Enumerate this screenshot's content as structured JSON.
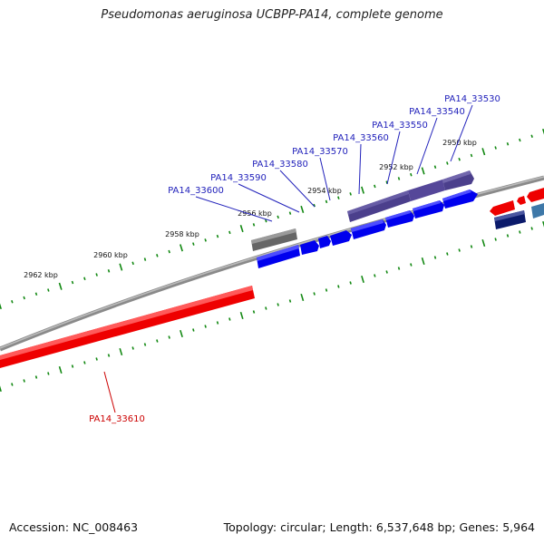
{
  "title": "Pseudomonas aeruginosa UCBPP-PA14, complete genome",
  "footer": {
    "accession": "Accession: NC_008463",
    "summary": "Topology: circular; Length: 6,537,648 bp; Genes: 5,964"
  },
  "colors": {
    "forward_gene": "#0000ee",
    "forward_label": "#2222bb",
    "reverse_gene": "#ee0000",
    "reverse_label": "#cc0000",
    "purple_gene": "#4b3f8c",
    "grey_gene": "#666666",
    "navy_gene": "#0b1a6b",
    "steelblue_gene": "#3e78a8",
    "backbone": "#888888",
    "tick": "#118811"
  },
  "scale_labels": [
    "2950 kbp",
    "2952 kbp",
    "2954 kbp",
    "2956 kbp",
    "2958 kbp",
    "2960 kbp",
    "2962 kbp"
  ],
  "gene_labels": [
    {
      "id": "PA14_33530",
      "strand": "forward"
    },
    {
      "id": "PA14_33540",
      "strand": "forward"
    },
    {
      "id": "PA14_33550",
      "strand": "forward"
    },
    {
      "id": "PA14_33560",
      "strand": "forward"
    },
    {
      "id": "PA14_33570",
      "strand": "forward"
    },
    {
      "id": "PA14_33580",
      "strand": "forward"
    },
    {
      "id": "PA14_33590",
      "strand": "forward"
    },
    {
      "id": "PA14_33600",
      "strand": "forward"
    },
    {
      "id": "PA14_33610",
      "strand": "reverse"
    }
  ]
}
